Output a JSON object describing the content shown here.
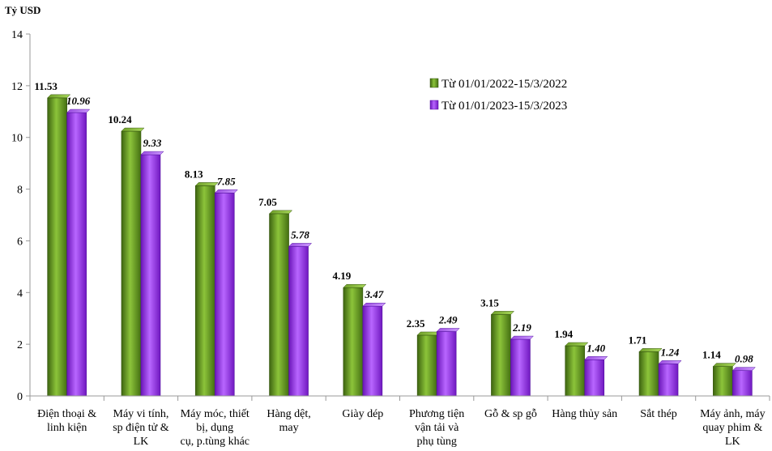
{
  "chart_data": {
    "type": "bar",
    "ylabel": "Tỷ USD",
    "ylim": [
      0,
      14
    ],
    "yticks": [
      "0",
      "2",
      "4",
      "6",
      "8",
      "10",
      "12",
      "14"
    ],
    "legend_position": "top-right",
    "categories": [
      [
        "Điện thoại &",
        "linh kiện"
      ],
      [
        "Máy vi tính,",
        "sp điện tử &",
        "LK"
      ],
      [
        "Máy móc, thiết",
        "bị, dụng",
        "cụ, p.tùng khác"
      ],
      [
        "Hàng dệt,",
        "may"
      ],
      [
        "Giày dép"
      ],
      [
        "Phương tiện",
        "vận tải và",
        "phụ tùng"
      ],
      [
        "Gỗ & sp gỗ"
      ],
      [
        "Hàng thủy sản"
      ],
      [
        "Sắt thép"
      ],
      [
        "Máy ảnh, máy",
        "quay phim &",
        "LK"
      ]
    ],
    "series": [
      {
        "name": "Từ 01/01/2022-15/3/2022",
        "color": "#5a8a1a",
        "values": [
          11.53,
          10.24,
          8.13,
          7.05,
          4.19,
          2.35,
          3.15,
          1.94,
          1.71,
          1.14
        ],
        "labels": [
          "11.53",
          "10.24",
          "8.13",
          "7.05",
          "4.19",
          "2.35",
          "3.15",
          "1.94",
          "1.71",
          "1.14"
        ]
      },
      {
        "name": "Từ 01/01/2023-15/3/2023",
        "color": "#9933ee",
        "values": [
          10.96,
          9.33,
          7.85,
          5.78,
          3.47,
          2.49,
          2.19,
          1.4,
          1.24,
          0.98
        ],
        "labels": [
          "10.96",
          "9.33",
          "7.85",
          "5.78",
          "3.47",
          "2.49",
          "2.19",
          "1.40",
          "1.24",
          "0.98"
        ]
      }
    ]
  }
}
